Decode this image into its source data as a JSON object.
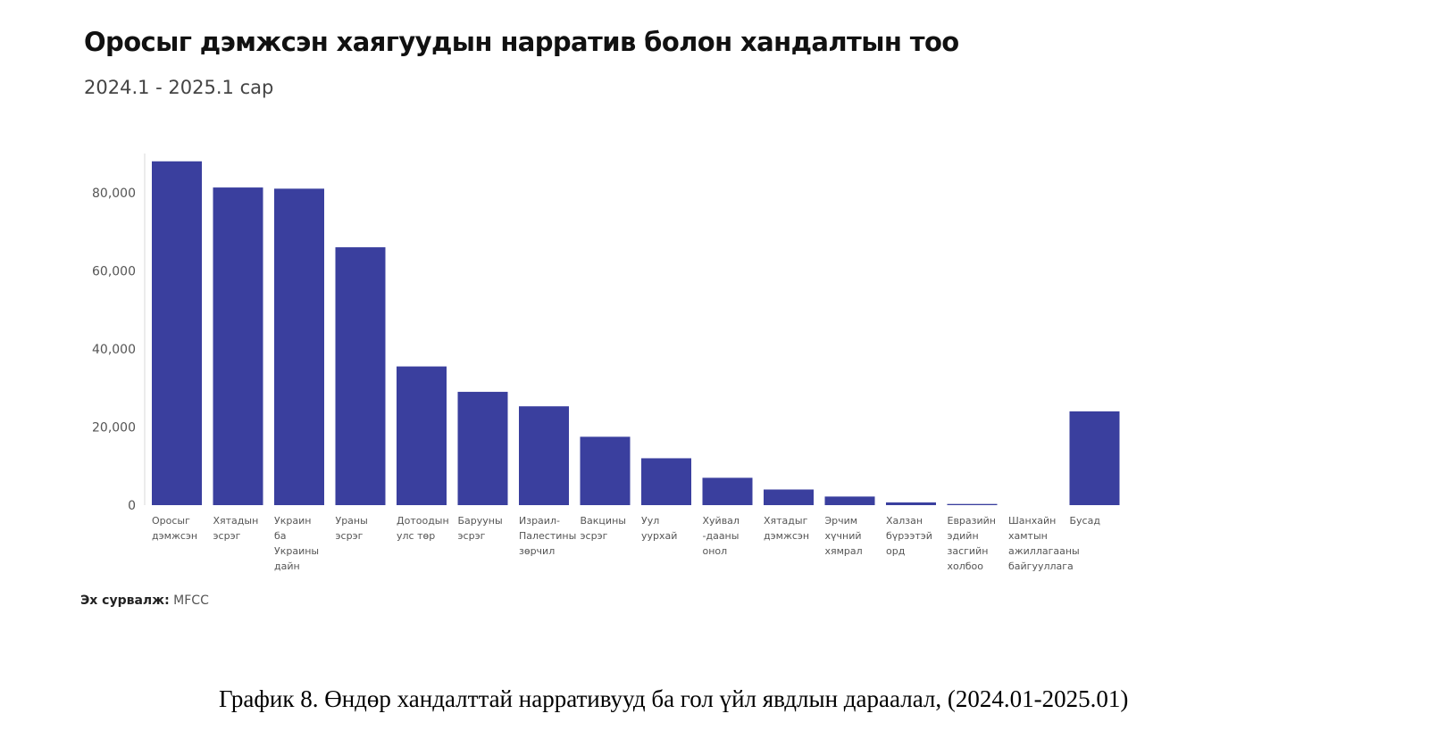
{
  "title": "Оросыг дэмжсэн хаягуудын нарратив болон хандалтын тоо",
  "subtitle": "2024.1 - 2025.1 сар",
  "source_label": "Эх сурвалж:",
  "source_value": "MFCC",
  "caption": "График 8. Өндөр хандалттай нарративууд ба гол үйл явдлын дараалал, (2024.01-2025.01)",
  "colors": {
    "bar": "#3a3f9e",
    "axis": "#d9d9d9",
    "tick_text": "#555555"
  },
  "chart_data": {
    "type": "bar",
    "categories": [
      [
        "Оросыг",
        "дэмжсэн"
      ],
      [
        "Хятадын",
        "эсрэг"
      ],
      [
        "Украин",
        "ба",
        "Украины",
        "дайн"
      ],
      [
        "Ураны",
        "эсрэг"
      ],
      [
        "Дотоодын",
        "улс төр"
      ],
      [
        "Барууны",
        "эсрэг"
      ],
      [
        "Израил-",
        "Палестины",
        "зөрчил"
      ],
      [
        "Вакцины",
        "эсрэг"
      ],
      [
        "Уул",
        "уурхай"
      ],
      [
        "Хуйвал",
        "-дааны",
        "онол"
      ],
      [
        "Хятадыг",
        "дэмжсэн"
      ],
      [
        "Эрчим",
        "хүчний",
        "хямрал"
      ],
      [
        "Халзан",
        "бүрээтэй",
        "орд"
      ],
      [
        "Евразийн",
        "эдийн",
        "засгийн",
        "холбоо"
      ],
      [
        "Шанхайн",
        "хамтын",
        "ажиллагааны",
        "байгууллага"
      ],
      [
        "Бусад"
      ]
    ],
    "values": [
      88000,
      81300,
      81000,
      66000,
      35500,
      29000,
      25300,
      17500,
      12000,
      7000,
      4000,
      2200,
      700,
      300,
      0,
      24000
    ],
    "ylim": [
      0,
      90000
    ],
    "yticks": [
      0,
      20000,
      40000,
      60000,
      80000
    ],
    "ytick_labels": [
      "0",
      "20,000",
      "40,000",
      "60,000",
      "80,000"
    ],
    "grid": false,
    "legend": "none"
  }
}
